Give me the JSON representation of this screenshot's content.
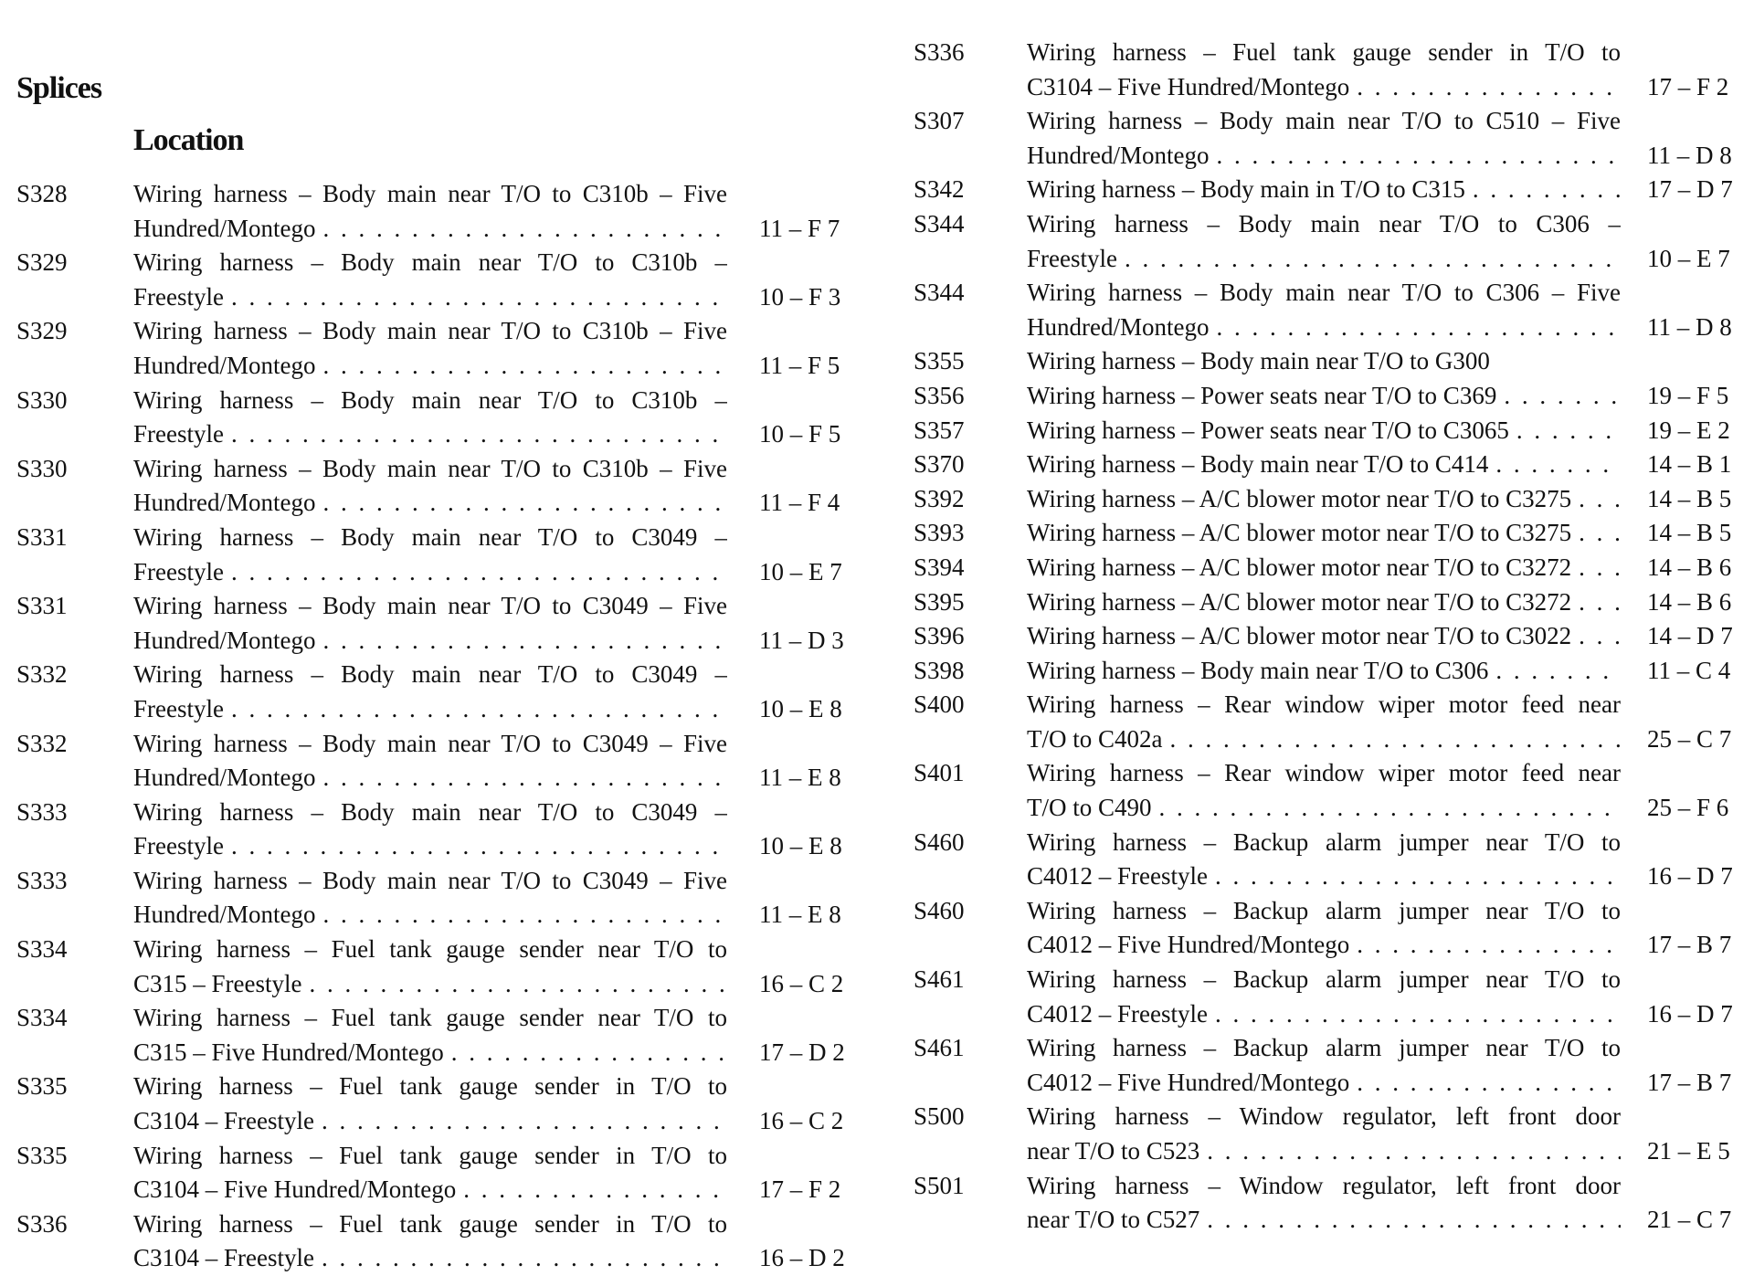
{
  "title": "Splices",
  "subtitle": "Location",
  "left": [
    {
      "code": "S328",
      "l1": "Wiring harness – Body main near T/O to C310b – Five",
      "l2": "Hundred/Montego",
      "loc": "11 – F 7"
    },
    {
      "code": "S329",
      "l1": "Wiring harness – Body main near T/O to C310b –",
      "l2": "Freestyle",
      "loc": "10 – F 3"
    },
    {
      "code": "S329",
      "l1": "Wiring harness – Body main near T/O to C310b – Five",
      "l2": "Hundred/Montego",
      "loc": "11 – F 5"
    },
    {
      "code": "S330",
      "l1": "Wiring harness – Body main near T/O to C310b –",
      "l2": "Freestyle",
      "loc": "10 – F 5"
    },
    {
      "code": "S330",
      "l1": "Wiring harness – Body main near T/O to C310b – Five",
      "l2": "Hundred/Montego",
      "loc": "11 – F 4"
    },
    {
      "code": "S331",
      "l1": "Wiring harness – Body main near T/O to C3049 –",
      "l2": "Freestyle",
      "loc": "10 – E 7"
    },
    {
      "code": "S331",
      "l1": "Wiring harness – Body main near T/O to C3049 – Five",
      "l2": "Hundred/Montego",
      "loc": "11 – D 3"
    },
    {
      "code": "S332",
      "l1": "Wiring harness – Body main near T/O to C3049 –",
      "l2": "Freestyle",
      "loc": "10 – E 8"
    },
    {
      "code": "S332",
      "l1": "Wiring harness – Body main near T/O to C3049 – Five",
      "l2": "Hundred/Montego",
      "loc": "11 – E 8"
    },
    {
      "code": "S333",
      "l1": "Wiring harness – Body main near T/O to C3049 –",
      "l2": "Freestyle",
      "loc": "10 – E 8"
    },
    {
      "code": "S333",
      "l1": "Wiring harness – Body main near T/O to C3049 – Five",
      "l2": "Hundred/Montego",
      "loc": "11 – E 8"
    },
    {
      "code": "S334",
      "l1": "Wiring harness – Fuel tank gauge sender near T/O to",
      "l2": "C315 – Freestyle",
      "loc": "16 – C 2"
    },
    {
      "code": "S334",
      "l1": "Wiring harness – Fuel tank gauge sender near T/O to",
      "l2": "C315 – Five Hundred/Montego",
      "loc": "17 – D 2"
    },
    {
      "code": "S335",
      "l1": "Wiring harness – Fuel tank gauge sender in T/O to",
      "l2": "C3104 – Freestyle",
      "loc": "16 – C 2"
    },
    {
      "code": "S335",
      "l1": "Wiring harness – Fuel tank gauge sender in T/O to",
      "l2": "C3104 – Five Hundred/Montego",
      "loc": "17 – F 2"
    },
    {
      "code": "S336",
      "l1": "Wiring harness – Fuel tank gauge sender in T/O to",
      "l2": "C3104 – Freestyle",
      "loc": "16 – D 2"
    }
  ],
  "right": [
    {
      "code": "S336",
      "l1": "Wiring harness – Fuel tank gauge sender in T/O to",
      "l2": "C3104 – Five Hundred/Montego",
      "loc": "17 – F 2"
    },
    {
      "code": "S307",
      "l1": "Wiring harness – Body main near T/O to C510 – Five",
      "l2": "Hundred/Montego",
      "loc": "11 – D 8"
    },
    {
      "code": "S342",
      "l1": "Wiring harness – Body main in T/O to C315",
      "loc": "17 – D 7"
    },
    {
      "code": "S344",
      "l1": "Wiring harness – Body main near T/O to C306 –",
      "l2": "Freestyle",
      "loc": "10 – E 7"
    },
    {
      "code": "S344",
      "l1": "Wiring harness – Body main near T/O to C306 – Five",
      "l2": "Hundred/Montego",
      "loc": "11 – D 8"
    },
    {
      "code": "S355",
      "l1": "Wiring harness – Body main near T/O to G300",
      "loc": ""
    },
    {
      "code": "S356",
      "l1": "Wiring harness – Power seats near T/O to C369",
      "loc": "19 – F 5"
    },
    {
      "code": "S357",
      "l1": "Wiring harness – Power seats near T/O to C3065",
      "loc": "19 – E 2"
    },
    {
      "code": "S370",
      "l1": "Wiring harness – Body main near T/O to C414",
      "loc": "14 – B 1"
    },
    {
      "code": "S392",
      "l1": "Wiring harness – A/C blower motor near T/O to C3275",
      "loc": "14 – B 5"
    },
    {
      "code": "S393",
      "l1": "Wiring harness – A/C blower motor near T/O to C3275",
      "loc": "14 – B 5"
    },
    {
      "code": "S394",
      "l1": "Wiring harness – A/C blower motor near T/O to C3272",
      "loc": "14 – B 6"
    },
    {
      "code": "S395",
      "l1": "Wiring harness – A/C blower motor near T/O to C3272",
      "loc": "14 – B 6"
    },
    {
      "code": "S396",
      "l1": "Wiring harness – A/C blower motor near T/O to C3022",
      "loc": "14 – D 7"
    },
    {
      "code": "S398",
      "l1": "Wiring harness – Body main near T/O to C306",
      "loc": "11 – C 4"
    },
    {
      "code": "S400",
      "l1": "Wiring harness – Rear window wiper motor feed near",
      "l2": "T/O to C402a",
      "loc": "25 – C 7"
    },
    {
      "code": "S401",
      "l1": "Wiring harness – Rear window wiper motor feed near",
      "l2": "T/O to C490",
      "loc": "25 – F 6"
    },
    {
      "code": "S460",
      "l1": "Wiring harness – Backup alarm jumper near T/O to",
      "l2": "C4012 – Freestyle",
      "loc": "16 – D 7"
    },
    {
      "code": "S460",
      "l1": "Wiring harness – Backup alarm jumper near T/O to",
      "l2": "C4012 – Five Hundred/Montego",
      "loc": "17 – B 7"
    },
    {
      "code": "S461",
      "l1": "Wiring harness – Backup alarm jumper near T/O to",
      "l2": "C4012 – Freestyle",
      "loc": "16 – D 7"
    },
    {
      "code": "S461",
      "l1": "Wiring harness – Backup alarm jumper near T/O to",
      "l2": "C4012 – Five Hundred/Montego",
      "loc": "17 – B 7"
    },
    {
      "code": "S500",
      "l1": "Wiring harness – Window regulator, left front door",
      "l2": "near T/O to C523",
      "loc": "21 – E 5"
    },
    {
      "code": "S501",
      "l1": "Wiring harness – Window regulator, left front door",
      "l2": "near T/O to C527",
      "loc": "21 – C 7"
    }
  ]
}
